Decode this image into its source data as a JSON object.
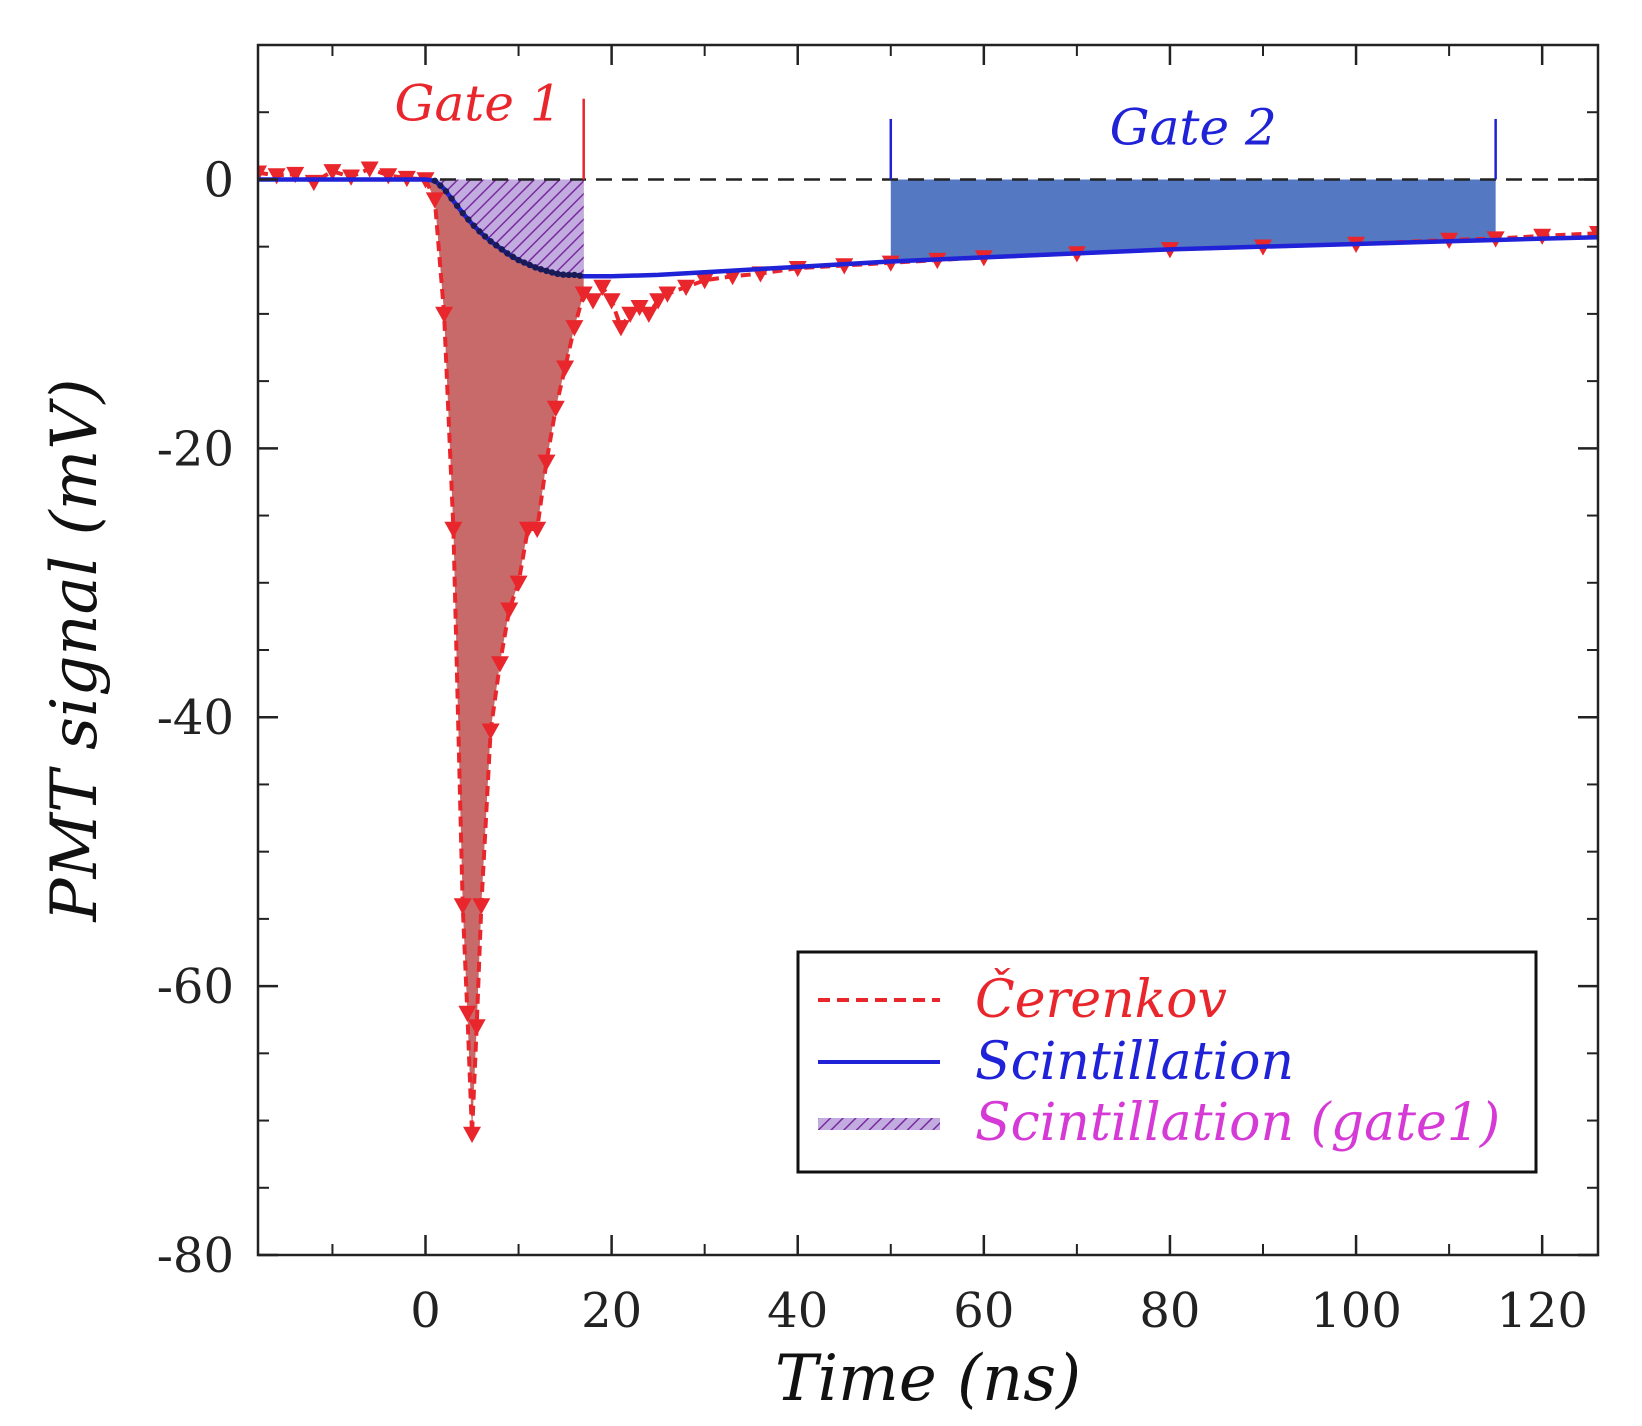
{
  "chart_data": {
    "type": "line",
    "title": "",
    "xlabel": "Time (ns)",
    "ylabel": "PMT signal (mV)",
    "xlim": [
      -18,
      126
    ],
    "ylim": [
      -80,
      10
    ],
    "x_ticks": [
      0,
      20,
      40,
      60,
      80,
      100,
      120
    ],
    "x_tick_labels": [
      "0",
      "20",
      "40",
      "60",
      "80",
      "100",
      "120"
    ],
    "y_ticks": [
      0,
      -20,
      -40,
      -60,
      -80
    ],
    "y_tick_labels": [
      "0",
      "-20",
      "-40",
      "-60",
      "-80"
    ],
    "x_minor_step": 10,
    "y_minor_step": 5,
    "zero_line": "dashed",
    "gates": [
      {
        "label": "Gate 1",
        "start": 0,
        "end": 17,
        "color": "#e8262c"
      },
      {
        "label": "Gate 2",
        "start": 50,
        "end": 115,
        "color": "#1f22d6"
      }
    ],
    "series": [
      {
        "name": "Čerenkov",
        "style": "dashed-triangles",
        "color": "#e8262c",
        "x": [
          -18,
          -16,
          -14,
          -12,
          -10,
          -8,
          -6,
          -4,
          -2,
          0,
          1,
          2,
          3,
          4,
          4.5,
          5,
          5.5,
          6,
          7,
          8,
          9,
          10,
          11,
          12,
          13,
          14,
          15,
          16,
          17,
          18,
          19,
          20,
          21,
          22,
          23,
          24,
          25,
          26,
          28,
          30,
          33,
          36,
          40,
          45,
          50,
          55,
          60,
          70,
          80,
          90,
          100,
          110,
          115,
          120,
          126
        ],
        "values": [
          0.5,
          0.3,
          0.4,
          -0.2,
          0.6,
          0.2,
          0.8,
          0.3,
          0.1,
          0,
          -1.5,
          -10,
          -26,
          -54,
          -62,
          -71,
          -63,
          -54,
          -41,
          -36,
          -32,
          -30,
          -26,
          -26,
          -21,
          -17,
          -14,
          -11,
          -8.5,
          -9,
          -8,
          -9,
          -11,
          -10,
          -9.5,
          -10,
          -9,
          -8.5,
          -8,
          -7.5,
          -7.2,
          -7,
          -6.6,
          -6.4,
          -6.2,
          -6,
          -5.8,
          -5.5,
          -5.2,
          -5,
          -4.8,
          -4.5,
          -4.4,
          -4.2,
          -4.0
        ]
      },
      {
        "name": "Scintillation",
        "style": "solid",
        "color": "#1f22d6",
        "x": [
          -18,
          -5,
          0,
          1,
          2,
          3,
          4,
          5,
          6,
          7,
          8,
          9,
          10,
          11,
          12,
          13,
          14,
          15,
          16,
          17,
          20,
          25,
          30,
          40,
          50,
          60,
          70,
          80,
          90,
          100,
          110,
          115,
          120,
          126
        ],
        "values": [
          0,
          0,
          0,
          -0.1,
          -0.7,
          -1.6,
          -2.5,
          -3.3,
          -4.0,
          -4.6,
          -5.1,
          -5.6,
          -6.0,
          -6.3,
          -6.6,
          -6.8,
          -7.0,
          -7.1,
          -7.1,
          -7.2,
          -7.2,
          -7.1,
          -6.9,
          -6.5,
          -6.1,
          -5.8,
          -5.5,
          -5.2,
          -5.0,
          -4.8,
          -4.6,
          -4.5,
          -4.4,
          -4.3
        ]
      },
      {
        "name": "Scintillation (gate1)",
        "style": "hatched-fill",
        "color": "#d63ad6"
      }
    ],
    "legend": {
      "position": "bottom-right",
      "entries": [
        {
          "label": "Čerenkov",
          "color": "#e8262c",
          "style": "dashed"
        },
        {
          "label": "Scintillation",
          "color": "#1f22d6",
          "style": "solid"
        },
        {
          "label": "Scintillation (gate1)",
          "color": "#d63ad6",
          "style": "hatched"
        }
      ]
    },
    "colors": {
      "cherenkov_fill": "#c96a6a",
      "gate2_fill": "#5578c2",
      "hatch_fill": "#b39ad6",
      "hatch_line": "#7a2aa0"
    }
  }
}
